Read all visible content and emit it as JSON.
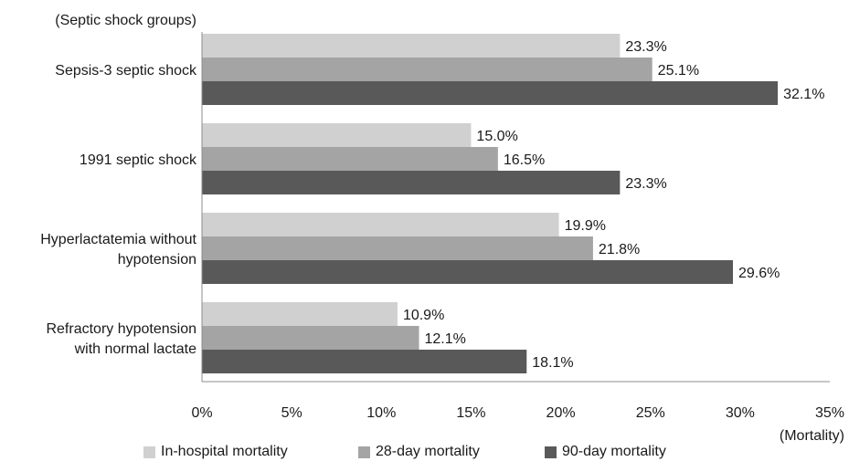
{
  "chart_data": {
    "type": "bar",
    "orientation": "horizontal",
    "title": "",
    "ylabel": "(Septic shock groups)",
    "xlabel": "(Mortality)",
    "categories": [
      [
        "Sepsis-3 septic shock"
      ],
      [
        "1991 septic shock"
      ],
      [
        "Hyperlactatemia without",
        "hypotension"
      ],
      [
        "Refractory hypotension",
        "with normal lactate"
      ]
    ],
    "series": [
      {
        "name": "In-hospital mortality",
        "color": "#d0d0d0",
        "values": [
          23.3,
          15.0,
          19.9,
          10.9
        ],
        "labels": [
          "23.3%",
          "15.0%",
          "19.9%",
          "10.9%"
        ]
      },
      {
        "name": "28-day mortality",
        "color": "#a4a4a4",
        "values": [
          25.1,
          16.5,
          21.8,
          12.1
        ],
        "labels": [
          "25.1%",
          "16.5%",
          "21.8%",
          "12.1%"
        ]
      },
      {
        "name": "90-day mortality",
        "color": "#595959",
        "values": [
          32.1,
          23.3,
          29.6,
          18.1
        ],
        "labels": [
          "32.1%",
          "23.3%",
          "29.6%",
          "18.1%"
        ]
      }
    ],
    "xlim": [
      0,
      35
    ],
    "xticks": [
      0,
      5,
      10,
      15,
      20,
      25,
      30,
      35
    ],
    "xtick_labels": [
      "0%",
      "5%",
      "10%",
      "15%",
      "20%",
      "25%",
      "30%",
      "35%"
    ],
    "grid": false,
    "legend_position": "bottom"
  }
}
